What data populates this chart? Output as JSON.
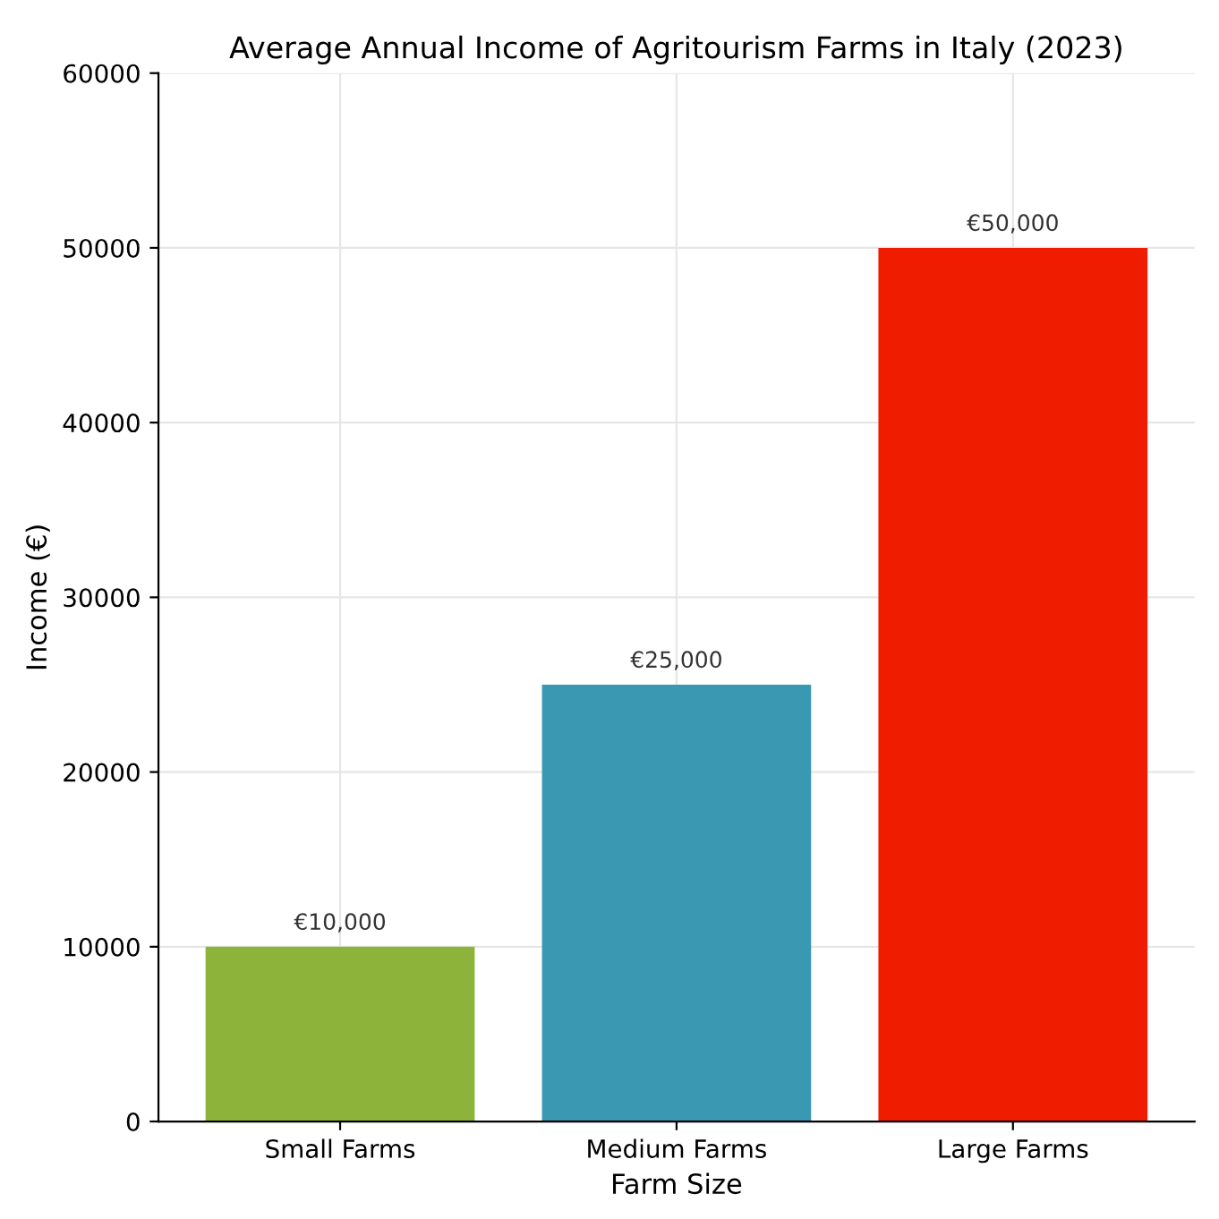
{
  "chart_data": {
    "type": "bar",
    "title": "Average Annual Income of Agritourism Farms in Italy (2023)",
    "xlabel": "Farm Size",
    "ylabel": "Income (€)",
    "categories": [
      "Small Farms",
      "Medium Farms",
      "Large Farms"
    ],
    "values": [
      10000,
      25000,
      50000
    ],
    "colors": [
      "#8db33a",
      "#3a98b3",
      "#f01c00"
    ],
    "value_labels": [
      "€10,000",
      "€25,000",
      "€50,000"
    ],
    "ylim": [
      0,
      60000
    ],
    "yticks": [
      0,
      10000,
      20000,
      30000,
      40000,
      50000,
      60000
    ],
    "grid": true
  }
}
